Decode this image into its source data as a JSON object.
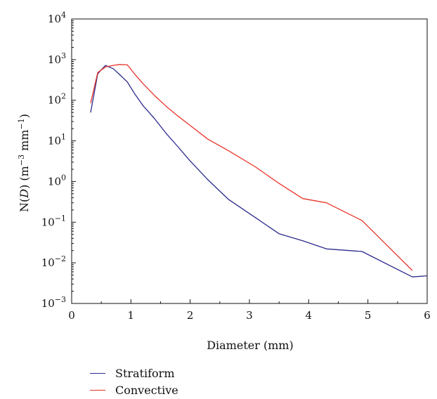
{
  "chart_data": {
    "type": "line",
    "xlabel": "Diameter (mm)",
    "ylabel": {
      "pre": "N(",
      "var": "D",
      "mid": ") (m",
      "sup1": "−3",
      "mid2": " mm",
      "sup2": "−1",
      "post": ")"
    },
    "xlim": [
      0,
      6
    ],
    "ylim": [
      0.001,
      10000
    ],
    "yscale": "log",
    "x_ticks": [
      "0",
      "1",
      "2",
      "3",
      "4",
      "5",
      "6"
    ],
    "y_ticks": [
      {
        "base": "10",
        "exp": "−3"
      },
      {
        "base": "10",
        "exp": "−2"
      },
      {
        "base": "10",
        "exp": "−1"
      },
      {
        "base": "10",
        "exp": "0"
      },
      {
        "base": "10",
        "exp": "1"
      },
      {
        "base": "10",
        "exp": "2"
      },
      {
        "base": "10",
        "exp": "3"
      },
      {
        "base": "10",
        "exp": "4"
      }
    ],
    "grid": false,
    "legend_position": "bottom-left, below plot",
    "series": [
      {
        "name": "Stratiform",
        "color": "#2b2a8c",
        "points": [
          [
            0.32,
            50
          ],
          [
            0.44,
            450
          ],
          [
            0.57,
            720
          ],
          [
            0.7,
            600
          ],
          [
            0.81,
            430
          ],
          [
            0.94,
            280
          ],
          [
            1.07,
            140
          ],
          [
            1.2,
            75
          ],
          [
            1.4,
            35
          ],
          [
            1.6,
            15
          ],
          [
            1.8,
            7
          ],
          [
            2.0,
            3.2
          ],
          [
            2.3,
            1.1
          ],
          [
            2.65,
            0.36
          ],
          [
            3.1,
            0.13
          ],
          [
            3.5,
            0.052
          ],
          [
            3.9,
            0.035
          ],
          [
            4.3,
            0.022
          ],
          [
            4.9,
            0.019
          ],
          [
            5.75,
            0.0045
          ],
          [
            6.0,
            0.0048
          ]
        ]
      },
      {
        "name": "Convective",
        "color": "#e8332a",
        "points": [
          [
            0.32,
            85
          ],
          [
            0.44,
            480
          ],
          [
            0.57,
            660
          ],
          [
            0.7,
            720
          ],
          [
            0.81,
            760
          ],
          [
            0.94,
            740
          ],
          [
            1.07,
            430
          ],
          [
            1.2,
            260
          ],
          [
            1.4,
            130
          ],
          [
            1.6,
            70
          ],
          [
            1.8,
            40
          ],
          [
            2.0,
            24
          ],
          [
            2.3,
            11
          ],
          [
            2.65,
            5.7
          ],
          [
            3.1,
            2.3
          ],
          [
            3.5,
            0.9
          ],
          [
            3.9,
            0.38
          ],
          [
            4.3,
            0.3
          ],
          [
            4.9,
            0.11
          ],
          [
            5.75,
            0.0065
          ]
        ]
      }
    ]
  }
}
